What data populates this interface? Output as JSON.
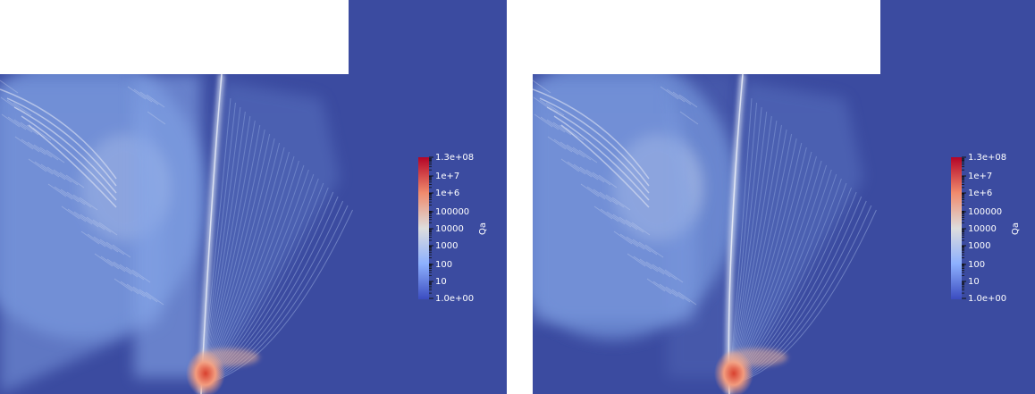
{
  "panels": [
    {
      "colorbar": {
        "title": "Qa",
        "labels": [
          "1.3e+08",
          "1e+7",
          "1e+6",
          "100000",
          "10000",
          "1000",
          "100",
          "10",
          "1.0e+00"
        ]
      }
    },
    {
      "colorbar": {
        "title": "Qa",
        "labels": [
          "1.3e+08",
          "1e+7",
          "1e+6",
          "100000",
          "10000",
          "1000",
          "100",
          "10",
          "1.0e+00"
        ]
      }
    }
  ]
}
